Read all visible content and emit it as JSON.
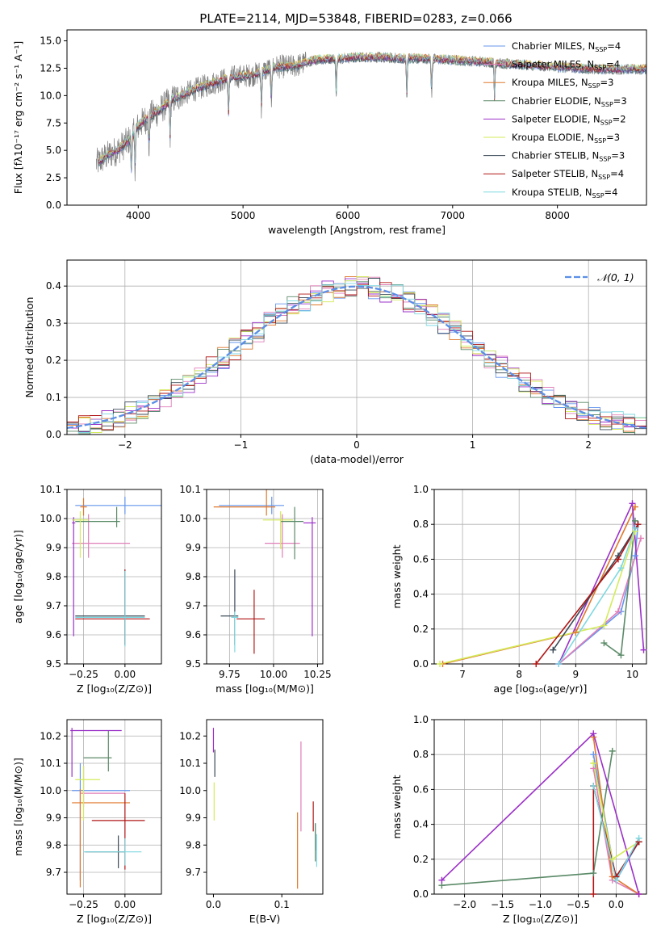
{
  "figure": {
    "title": "PLATE=2114, MJD=53848, FIBERID=0283, z=0.066"
  },
  "chart_data": [
    {
      "id": "spectrum",
      "type": "line",
      "title": "PLATE=2114, MJD=53848, FIBERID=0283, z=0.066",
      "xlabel": "wavelength [Angstrom, rest frame]",
      "ylabel": "Flux [fλ10⁻¹⁷ erg cm⁻² s⁻¹ A⁻¹]",
      "xlim": [
        3320,
        8850
      ],
      "ylim": [
        0,
        16
      ],
      "xticks": [
        4000,
        5000,
        6000,
        7000,
        8000
      ],
      "yticks": [
        0.0,
        2.5,
        5.0,
        7.5,
        10.0,
        12.5,
        15.0
      ],
      "grid": false,
      "legend": "top-right",
      "data_color": "#808080",
      "continuum": {
        "x": [
          3600,
          3700,
          3800,
          3900,
          4000,
          4100,
          4200,
          4300,
          4500,
          4700,
          4900,
          5100,
          5300,
          5500,
          5700,
          5900,
          6100,
          6300,
          6500,
          6700,
          6900,
          7100,
          7300,
          7500,
          7700,
          8000,
          8400
        ],
        "y": [
          3.8,
          4.5,
          5.0,
          5.8,
          7.2,
          8.1,
          8.6,
          9.5,
          10.4,
          11.1,
          11.7,
          11.9,
          12.6,
          12.7,
          13.3,
          13.4,
          13.5,
          13.5,
          13.4,
          13.4,
          13.3,
          13.2,
          13.1,
          12.9,
          12.8,
          12.6,
          12.4
        ]
      },
      "absorption_lines": [
        3934,
        3969,
        4102,
        4304,
        4861,
        5175,
        5270,
        5890,
        6563,
        6800,
        7400
      ],
      "series": [
        {
          "name": "Chabrier MILES, N",
          "sub": "SSP",
          "suffix": "=4",
          "color": "#6495ed"
        },
        {
          "name": "Salpeter MILES, N",
          "sub": "SSP",
          "suffix": "=4",
          "color": "#e07eb8"
        },
        {
          "name": "Kroupa MILES, N",
          "sub": "SSP",
          "suffix": "=3",
          "color": "#e0782c"
        },
        {
          "name": "Chabrier ELODIE, N",
          "sub": "SSP",
          "suffix": "=3",
          "color": "#5b8a68"
        },
        {
          "name": "Salpeter ELODIE, N",
          "sub": "SSP",
          "suffix": "=2",
          "color": "#9b30c8"
        },
        {
          "name": "Kroupa ELODIE, N",
          "sub": "SSP",
          "suffix": "=3",
          "color": "#d4eb5a"
        },
        {
          "name": "Chabrier STELIB, N",
          "sub": "SSP",
          "suffix": "=3",
          "color": "#3b4a57"
        },
        {
          "name": "Salpeter STELIB, N",
          "sub": "SSP",
          "suffix": "=4",
          "color": "#b01515"
        },
        {
          "name": "Kroupa STELIB, N",
          "sub": "SSP",
          "suffix": "=4",
          "color": "#7fd8e0"
        }
      ]
    },
    {
      "id": "residuals",
      "type": "histogram",
      "xlabel": "(data-model)/error",
      "ylabel": "Normed distribution",
      "xlim": [
        -2.5,
        2.5
      ],
      "ylim": [
        0,
        0.47
      ],
      "xticks": [
        -2,
        -1,
        0,
        1,
        2
      ],
      "yticks": [
        0.0,
        0.1,
        0.2,
        0.3,
        0.4
      ],
      "grid": true,
      "legend": "top-right",
      "gaussian_label": "𝒩(0, 1)",
      "gaussian_color": "#5b8ee6",
      "bin_width": 0.1
    },
    {
      "id": "age-vs-z",
      "type": "errorbar",
      "xlabel": "Z [log₁₀(Z/Z⊙)]",
      "ylabel": "age  [log₁₀(age/yr)]",
      "xlim": [
        -0.35,
        0.22
      ],
      "ylim": [
        9.5,
        10.1
      ],
      "xticks": [
        -0.25,
        0.0
      ],
      "yticks": [
        9.5,
        9.6,
        9.7,
        9.8,
        9.9,
        10.0,
        10.1
      ],
      "grid": true,
      "points": [
        {
          "series": 0,
          "x": 0.0,
          "y": 10.045,
          "xerr": [
            0.3,
            0.28
          ],
          "yerr": [
            0.03,
            0.03
          ]
        },
        {
          "series": 1,
          "x": -0.22,
          "y": 9.915,
          "xerr": [
            0.1,
            0.25
          ],
          "yerr": [
            0.05,
            0.1
          ]
        },
        {
          "series": 2,
          "x": -0.25,
          "y": 10.04,
          "xerr": [
            0.02,
            0.02
          ],
          "yerr": [
            0.03,
            0.03
          ]
        },
        {
          "series": 3,
          "x": -0.05,
          "y": 9.99,
          "xerr": [
            0.25,
            0.02
          ],
          "yerr": [
            0.02,
            0.05
          ]
        },
        {
          "series": 4,
          "x": -0.31,
          "y": 9.985,
          "xerr": [
            0.01,
            0.01
          ],
          "yerr": [
            0.39,
            0.02
          ]
        },
        {
          "series": 5,
          "x": -0.27,
          "y": 9.995,
          "xerr": [
            0.05,
            0.05
          ],
          "yerr": [
            0.13,
            0.03
          ]
        },
        {
          "series": 6,
          "x": 0.0,
          "y": 9.665,
          "xerr": [
            0.3,
            0.12
          ],
          "yerr": [
            0.1,
            0.16
          ]
        },
        {
          "series": 7,
          "x": 0.0,
          "y": 9.655,
          "xerr": [
            0.3,
            0.15
          ],
          "yerr": [
            0.09,
            0.17
          ]
        },
        {
          "series": 8,
          "x": 0.0,
          "y": 9.66,
          "xerr": [
            0.3,
            0.12
          ],
          "yerr": [
            0.1,
            0.16
          ]
        }
      ]
    },
    {
      "id": "age-vs-mass",
      "type": "errorbar",
      "xlabel": "mass [log₁₀(M/M⊙)]",
      "ylabel": "",
      "xlim": [
        9.62,
        10.28
      ],
      "ylim": [
        9.5,
        10.1
      ],
      "xticks": [
        9.75,
        10.0,
        10.25
      ],
      "yticks": [
        9.5,
        9.6,
        9.7,
        9.8,
        9.9,
        10.0,
        10.1
      ],
      "grid": true,
      "points": [
        {
          "series": 0,
          "x": 9.99,
          "y": 10.045,
          "xerr": [
            0.3,
            0.07
          ],
          "yerr": [
            0.03,
            0.03
          ]
        },
        {
          "series": 1,
          "x": 10.05,
          "y": 9.915,
          "xerr": [
            0.1,
            0.1
          ],
          "yerr": [
            0.05,
            0.1
          ]
        },
        {
          "series": 2,
          "x": 9.96,
          "y": 10.04,
          "xerr": [
            0.3,
            0.05
          ],
          "yerr": [
            0.03,
            0.38
          ]
        },
        {
          "series": 3,
          "x": 10.12,
          "y": 9.99,
          "xerr": [
            0.08,
            0.05
          ],
          "yerr": [
            0.13,
            0.05
          ]
        },
        {
          "series": 4,
          "x": 10.22,
          "y": 9.985,
          "xerr": [
            0.05,
            0.02
          ],
          "yerr": [
            0.39,
            0.02
          ]
        },
        {
          "series": 5,
          "x": 10.04,
          "y": 9.995,
          "xerr": [
            0.1,
            0.07
          ],
          "yerr": [
            0.1,
            0.03
          ]
        },
        {
          "series": 6,
          "x": 9.78,
          "y": 9.665,
          "xerr": [
            0.08,
            0.02
          ],
          "yerr": [
            0.1,
            0.16
          ]
        },
        {
          "series": 7,
          "x": 9.89,
          "y": 9.655,
          "xerr": [
            0.1,
            0.06
          ],
          "yerr": [
            0.12,
            0.1
          ]
        },
        {
          "series": 8,
          "x": 9.78,
          "y": 9.66,
          "xerr": [
            0.02,
            0.02
          ],
          "yerr": [
            0.12,
            0.02
          ]
        }
      ]
    },
    {
      "id": "weight-vs-age",
      "type": "line",
      "xlabel": "age  [log₁₀(age/yr)]",
      "ylabel": "mass weight",
      "xlim": [
        6.5,
        10.25
      ],
      "ylim": [
        0,
        1
      ],
      "xticks": [
        7,
        8,
        9,
        10
      ],
      "yticks": [
        0.0,
        0.2,
        0.4,
        0.6,
        0.8,
        1.0
      ],
      "grid": true,
      "series": [
        {
          "series": 0,
          "x": [
            8.7,
            9.8,
            10.05,
            10.1
          ],
          "y": [
            0.0,
            0.3,
            0.62,
            0.8
          ]
        },
        {
          "series": 1,
          "x": [
            8.7,
            9.75,
            10.15
          ],
          "y": [
            0.0,
            0.3,
            0.72
          ]
        },
        {
          "series": 2,
          "x": [
            6.65,
            9.0,
            10.05
          ],
          "y": [
            0.0,
            0.18,
            0.9
          ]
        },
        {
          "series": 3,
          "x": [
            9.5,
            9.8,
            10.05
          ],
          "y": [
            0.12,
            0.05,
            0.82
          ]
        },
        {
          "series": 4,
          "x": [
            8.7,
            10.0,
            10.2
          ],
          "y": [
            0.0,
            0.92,
            0.08
          ]
        },
        {
          "series": 5,
          "x": [
            6.6,
            9.5,
            10.05
          ],
          "y": [
            0.0,
            0.22,
            0.76
          ]
        },
        {
          "series": 6,
          "x": [
            8.6,
            9.75,
            10.1
          ],
          "y": [
            0.08,
            0.62,
            0.8
          ]
        },
        {
          "series": 7,
          "x": [
            8.3,
            9.75,
            10.1
          ],
          "y": [
            0.0,
            0.6,
            0.8
          ]
        },
        {
          "series": 8,
          "x": [
            8.7,
            9.8,
            10.05
          ],
          "y": [
            0.0,
            0.55,
            0.78
          ]
        }
      ]
    },
    {
      "id": "mass-vs-z",
      "type": "errorbar",
      "xlabel": "Z [log₁₀(Z/Z⊙)]",
      "ylabel": "mass [log₁₀(M/M⊙)]",
      "xlim": [
        -0.35,
        0.22
      ],
      "ylim": [
        9.62,
        10.26
      ],
      "xticks": [
        -0.25,
        0.0
      ],
      "yticks": [
        9.7,
        9.8,
        9.9,
        10.0,
        10.1,
        10.2
      ],
      "grid": true,
      "points": [
        {
          "series": 0,
          "x": -0.27,
          "y": 10.0,
          "xerr": [
            0.05,
            0.3
          ],
          "yerr": [
            0.33,
            0.1
          ]
        },
        {
          "series": 1,
          "x": -0.25,
          "y": 9.99,
          "xerr": [
            0.02,
            0.25
          ],
          "yerr": [
            0.05,
            0.1
          ]
        },
        {
          "series": 2,
          "x": -0.27,
          "y": 9.955,
          "xerr": [
            0.05,
            0.3
          ],
          "yerr": [
            0.31,
            0.05
          ]
        },
        {
          "series": 3,
          "x": -0.1,
          "y": 10.12,
          "xerr": [
            0.15,
            0.02
          ],
          "yerr": [
            0.05,
            0.1
          ]
        },
        {
          "series": 4,
          "x": -0.32,
          "y": 10.22,
          "xerr": [
            0.01,
            0.3
          ],
          "yerr": [
            0.17,
            0.01
          ]
        },
        {
          "series": 5,
          "x": -0.25,
          "y": 10.04,
          "xerr": [
            0.05,
            0.1
          ],
          "yerr": [
            0.15,
            0.05
          ]
        },
        {
          "series": 6,
          "x": -0.04,
          "y": 9.775,
          "xerr": [
            0.2,
            0.04
          ],
          "yerr": [
            0.06,
            0.06
          ]
        },
        {
          "series": 7,
          "x": 0.0,
          "y": 9.89,
          "xerr": [
            0.2,
            0.12
          ],
          "yerr": [
            0.18,
            0.1
          ]
        },
        {
          "series": 8,
          "x": 0.0,
          "y": 9.775,
          "xerr": [
            0.25,
            0.1
          ],
          "yerr": [
            0.05,
            0.05
          ]
        }
      ]
    },
    {
      "id": "mass-vs-ebv",
      "type": "errorbar",
      "xlabel": "E(B-V)",
      "ylabel": "",
      "xlim": [
        -0.01,
        0.16
      ],
      "ylim": [
        9.62,
        10.26
      ],
      "xticks": [
        0.0,
        0.1
      ],
      "yticks": [
        9.7,
        9.8,
        9.9,
        10.0,
        10.1,
        10.2
      ],
      "grid": false,
      "points": [
        {
          "series": 0,
          "x": 0.149,
          "y": 9.83,
          "xerr": [
            0,
            0
          ],
          "yerr": [
            0.05,
            0.05
          ]
        },
        {
          "series": 1,
          "x": 0.128,
          "y": 10.0,
          "xerr": [
            0,
            0
          ],
          "yerr": [
            0.15,
            0.18
          ]
        },
        {
          "series": 2,
          "x": 0.123,
          "y": 9.8,
          "xerr": [
            0,
            0
          ],
          "yerr": [
            0.16,
            0.12
          ]
        },
        {
          "series": 3,
          "x": 0.149,
          "y": 9.82,
          "xerr": [
            0,
            0
          ],
          "yerr": [
            0.08,
            0.06
          ]
        },
        {
          "series": 4,
          "x": 0.0,
          "y": 10.2,
          "xerr": [
            0,
            0
          ],
          "yerr": [
            0.06,
            0.03
          ]
        },
        {
          "series": 5,
          "x": 0.001,
          "y": 9.98,
          "xerr": [
            0,
            0
          ],
          "yerr": [
            0.09,
            0.05
          ]
        },
        {
          "series": 6,
          "x": 0.002,
          "y": 10.1,
          "xerr": [
            0,
            0
          ],
          "yerr": [
            0.05,
            0.05
          ]
        },
        {
          "series": 7,
          "x": 0.146,
          "y": 9.9,
          "xerr": [
            0,
            0
          ],
          "yerr": [
            0.05,
            0.06
          ]
        },
        {
          "series": 8,
          "x": 0.151,
          "y": 9.79,
          "xerr": [
            0,
            0
          ],
          "yerr": [
            0.07,
            0.05
          ]
        }
      ]
    },
    {
      "id": "weight-vs-z",
      "type": "line",
      "xlabel": "Z [log₁₀(Z/Z⊙)]",
      "ylabel": "mass weight",
      "xlim": [
        -2.4,
        0.4
      ],
      "ylim": [
        0,
        1
      ],
      "xticks": [
        -2.0,
        -1.5,
        -1.0,
        -0.5,
        0.0
      ],
      "yticks": [
        0.0,
        0.2,
        0.4,
        0.6,
        0.8,
        1.0
      ],
      "grid": true,
      "series": [
        {
          "series": 0,
          "x": [
            -0.3,
            0.0,
            0.3
          ],
          "y": [
            0.8,
            0.08,
            0.3
          ]
        },
        {
          "series": 1,
          "x": [
            -0.3,
            -0.05,
            0.3
          ],
          "y": [
            0.72,
            0.08,
            0.0
          ]
        },
        {
          "series": 2,
          "x": [
            -0.3,
            -0.05,
            0.3
          ],
          "y": [
            0.9,
            0.1,
            0.0
          ]
        },
        {
          "series": 3,
          "x": [
            -2.3,
            -0.3,
            -0.05
          ],
          "y": [
            0.05,
            0.12,
            0.82
          ]
        },
        {
          "series": 4,
          "x": [
            -2.3,
            -0.3,
            0.3
          ],
          "y": [
            0.08,
            0.92,
            0.0
          ]
        },
        {
          "series": 5,
          "x": [
            -0.3,
            -0.05,
            0.3
          ],
          "y": [
            0.75,
            0.2,
            0.3
          ]
        },
        {
          "series": 6,
          "x": [
            -0.3,
            0.0,
            0.3
          ],
          "y": [
            0.62,
            0.1,
            0.3
          ]
        },
        {
          "series": 7,
          "x": [
            -0.3,
            -0.3,
            0.0,
            0.3
          ],
          "y": [
            0.0,
            0.62,
            0.1,
            0.3
          ]
        },
        {
          "series": 8,
          "x": [
            -0.3,
            0.0,
            0.3
          ],
          "y": [
            0.62,
            0.08,
            0.32
          ]
        }
      ]
    }
  ]
}
